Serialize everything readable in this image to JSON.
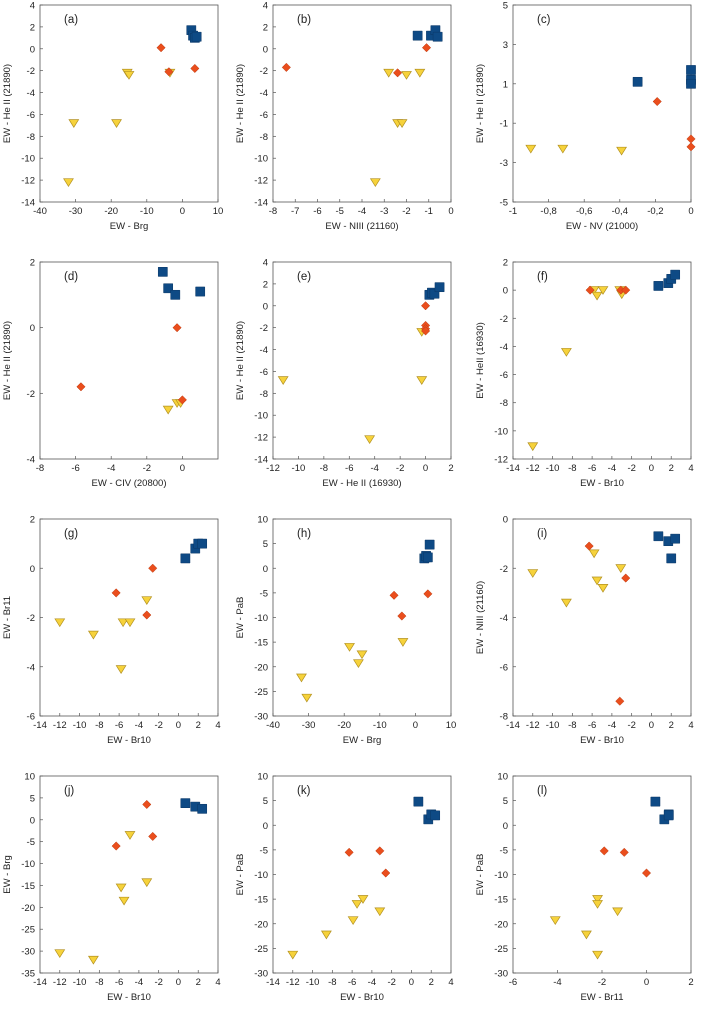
{
  "colors": {
    "blue_squares": "#0e4a85",
    "red_diamonds": "#ea4e1d",
    "yellow_triangles": "#f6d23b"
  },
  "chart_data": [
    {
      "type": "scatter",
      "panel_label": "(a)",
      "xlabel": "EW - Brg",
      "ylabel": "EW - He II (21890)",
      "xlim": [
        -40,
        10
      ],
      "ylim": [
        -14,
        4
      ],
      "xticks": [
        "-40",
        "-30",
        "-20",
        "-10",
        "0",
        "10"
      ],
      "yticks": [
        "-14",
        "-12",
        "-10",
        "-8",
        "-6",
        "-4",
        "-2",
        "0",
        "2",
        "4"
      ],
      "series": [
        {
          "name": "squares",
          "x": [
            2.5,
            3.0,
            3.5,
            4.0
          ],
          "y": [
            1.7,
            1.2,
            1.0,
            1.1
          ]
        },
        {
          "name": "diamonds",
          "x": [
            -6.0,
            -3.8,
            3.5
          ],
          "y": [
            0.1,
            -2.1,
            -1.8
          ]
        },
        {
          "name": "triangles",
          "x": [
            -32.0,
            -30.5,
            -18.5,
            -15.5,
            -15.0,
            -3.5
          ],
          "y": [
            -12.2,
            -6.8,
            -6.8,
            -2.2,
            -2.4,
            -2.2
          ]
        }
      ]
    },
    {
      "type": "scatter",
      "panel_label": "(b)",
      "xlabel": "EW - NIII (21160)",
      "ylabel": "EW - He II (21890)",
      "xlim": [
        -8,
        0
      ],
      "ylim": [
        -14,
        4
      ],
      "xticks": [
        "-8",
        "-7",
        "-6",
        "-5",
        "-4",
        "-3",
        "-2",
        "-1",
        "0"
      ],
      "yticks": [
        "-14",
        "-12",
        "-10",
        "-8",
        "-6",
        "-4",
        "-2",
        "0",
        "2",
        "4"
      ],
      "series": [
        {
          "name": "squares",
          "x": [
            -1.5,
            -0.9,
            -0.7,
            -0.6
          ],
          "y": [
            1.2,
            1.2,
            1.7,
            1.1
          ]
        },
        {
          "name": "diamonds",
          "x": [
            -7.4,
            -2.4,
            -1.1
          ],
          "y": [
            -1.7,
            -2.2,
            0.1
          ]
        },
        {
          "name": "triangles",
          "x": [
            -3.4,
            -2.8,
            -2.4,
            -2.2,
            -2.0,
            -1.4
          ],
          "y": [
            -12.2,
            -2.2,
            -6.8,
            -6.8,
            -2.4,
            -2.2
          ]
        }
      ]
    },
    {
      "type": "scatter",
      "panel_label": "(c)",
      "xlabel": "EW - NV (21000)",
      "ylabel": "EW - He II (21890)",
      "xlim": [
        -1,
        0
      ],
      "ylim": [
        -5,
        5
      ],
      "xticks": [
        "-1",
        "-0,8",
        "-0,6",
        "-0,4",
        "-0,2",
        "0"
      ],
      "yticks": [
        "-5",
        "-3",
        "-1",
        "1",
        "3",
        "5"
      ],
      "series": [
        {
          "name": "squares",
          "x": [
            -0.3,
            0.0,
            0.0,
            0.0
          ],
          "y": [
            1.1,
            1.7,
            1.2,
            1.0
          ]
        },
        {
          "name": "diamonds",
          "x": [
            -0.19,
            0.0,
            0.0
          ],
          "y": [
            0.1,
            -1.8,
            -2.2
          ]
        },
        {
          "name": "triangles",
          "x": [
            -0.9,
            -0.72,
            -0.39
          ],
          "y": [
            -2.3,
            -2.3,
            -2.4
          ]
        }
      ]
    },
    {
      "type": "scatter",
      "panel_label": "(d)",
      "xlabel": "EW - CIV (20800)",
      "ylabel": "EW - He II (21890)",
      "xlim": [
        -8,
        2
      ],
      "ylim": [
        -4,
        2
      ],
      "xticks": [
        "-8",
        "-6",
        "-4",
        "-2",
        "0"
      ],
      "yticks": [
        "-4",
        "-2",
        "0",
        "2"
      ],
      "series": [
        {
          "name": "squares",
          "x": [
            -1.1,
            -0.8,
            -0.4,
            1.0
          ],
          "y": [
            1.7,
            1.2,
            1.0,
            1.1
          ]
        },
        {
          "name": "diamonds",
          "x": [
            -5.7,
            -0.3,
            0.0
          ],
          "y": [
            -1.8,
            0.0,
            -2.2
          ]
        },
        {
          "name": "triangles",
          "x": [
            -0.8,
            -0.3,
            -0.1
          ],
          "y": [
            -2.5,
            -2.3,
            -2.3
          ]
        }
      ]
    },
    {
      "type": "scatter",
      "panel_label": "(e)",
      "xlabel": "EW - He II (16930)",
      "ylabel": "EW - He II (21890)",
      "xlim": [
        -12,
        2
      ],
      "ylim": [
        -14,
        4
      ],
      "xticks": [
        "-12",
        "-10",
        "-8",
        "-6",
        "-4",
        "-2",
        "0",
        "2"
      ],
      "yticks": [
        "-14",
        "-12",
        "-10",
        "-8",
        "-6",
        "-4",
        "-2",
        "0",
        "2",
        "4"
      ],
      "series": [
        {
          "name": "squares",
          "x": [
            0.3,
            0.5,
            0.7,
            1.1
          ],
          "y": [
            1.0,
            1.2,
            1.1,
            1.7
          ]
        },
        {
          "name": "diamonds",
          "x": [
            0.0,
            0.0,
            0.0,
            0.0
          ],
          "y": [
            0.0,
            -1.8,
            -2.1,
            -2.3
          ]
        },
        {
          "name": "triangles",
          "x": [
            -11.2,
            -4.4,
            -0.3,
            -0.3
          ],
          "y": [
            -6.8,
            -12.2,
            -2.4,
            -6.8
          ]
        }
      ]
    },
    {
      "type": "scatter",
      "panel_label": "(f)",
      "xlabel": "EW - Br10",
      "ylabel": "EW - HeII (16930)",
      "xlim": [
        -14,
        4
      ],
      "ylim": [
        -12,
        2
      ],
      "xticks": [
        "-14",
        "-12",
        "-10",
        "-8",
        "-6",
        "-4",
        "-2",
        "0",
        "2",
        "4"
      ],
      "yticks": [
        "-12",
        "-10",
        "-8",
        "-6",
        "-4",
        "-2",
        "0",
        "2"
      ],
      "series": [
        {
          "name": "squares",
          "x": [
            0.7,
            1.7,
            2.0,
            2.4
          ],
          "y": [
            0.3,
            0.5,
            0.8,
            1.1
          ]
        },
        {
          "name": "diamonds",
          "x": [
            -6.2,
            -3.1,
            -2.6
          ],
          "y": [
            0.0,
            0.0,
            0.0
          ]
        },
        {
          "name": "triangles",
          "x": [
            -12.0,
            -8.6,
            -5.8,
            -5.5,
            -4.9,
            -3.2,
            -3.0
          ],
          "y": [
            -11.1,
            -4.4,
            0.0,
            -0.4,
            0.0,
            0.0,
            -0.3
          ]
        }
      ]
    },
    {
      "type": "scatter",
      "panel_label": "(g)",
      "xlabel": "EW - Br10",
      "ylabel": "EW - Br11",
      "xlim": [
        -14,
        4
      ],
      "ylim": [
        -6,
        2
      ],
      "xticks": [
        "-14",
        "-12",
        "-10",
        "-8",
        "-6",
        "-4",
        "-2",
        "0",
        "2",
        "4"
      ],
      "yticks": [
        "-6",
        "-4",
        "-2",
        "0",
        "2"
      ],
      "series": [
        {
          "name": "squares",
          "x": [
            0.7,
            1.7,
            2.0,
            2.4
          ],
          "y": [
            0.4,
            0.8,
            1.0,
            1.0
          ]
        },
        {
          "name": "diamonds",
          "x": [
            -6.3,
            -3.2,
            -2.6
          ],
          "y": [
            -1.0,
            -1.9,
            0.0
          ]
        },
        {
          "name": "triangles",
          "x": [
            -12.0,
            -8.6,
            -5.8,
            -5.6,
            -4.9,
            -3.2
          ],
          "y": [
            -2.2,
            -2.7,
            -4.1,
            -2.2,
            -2.2,
            -1.3
          ]
        }
      ]
    },
    {
      "type": "scatter",
      "panel_label": "(h)",
      "xlabel": "EW - Brg",
      "ylabel": "EW - PaB",
      "xlim": [
        -40,
        10
      ],
      "ylim": [
        -30,
        10
      ],
      "xticks": [
        "-40",
        "-30",
        "-20",
        "-10",
        "0",
        "10"
      ],
      "yticks": [
        "-30",
        "-25",
        "-20",
        "-15",
        "-10",
        "-5",
        "0",
        "5",
        "10"
      ],
      "series": [
        {
          "name": "squares",
          "x": [
            2.5,
            3.0,
            3.5,
            4.0
          ],
          "y": [
            2.0,
            2.5,
            2.2,
            4.8
          ]
        },
        {
          "name": "diamonds",
          "x": [
            -6.0,
            -3.8,
            3.5
          ],
          "y": [
            -5.5,
            -9.7,
            -5.2
          ]
        },
        {
          "name": "triangles",
          "x": [
            -32.0,
            -30.5,
            -18.5,
            -16.0,
            -15.0,
            -3.5
          ],
          "y": [
            -22.2,
            -26.3,
            -16.0,
            -19.3,
            -17.5,
            -15.0
          ]
        }
      ]
    },
    {
      "type": "scatter",
      "panel_label": "(i)",
      "xlabel": "EW - Br10",
      "ylabel": "EW - NIII (21160)",
      "xlim": [
        -14,
        4
      ],
      "ylim": [
        -8,
        0
      ],
      "xticks": [
        "-14",
        "-12",
        "-10",
        "-8",
        "-6",
        "-4",
        "-2",
        "0",
        "2",
        "4"
      ],
      "yticks": [
        "-8",
        "-6",
        "-4",
        "-2",
        "0"
      ],
      "series": [
        {
          "name": "squares",
          "x": [
            0.7,
            1.7,
            2.0,
            2.4
          ],
          "y": [
            -0.7,
            -0.9,
            -1.6,
            -0.8
          ]
        },
        {
          "name": "diamonds",
          "x": [
            -6.3,
            -3.2,
            -2.6
          ],
          "y": [
            -1.1,
            -7.4,
            -2.4
          ]
        },
        {
          "name": "triangles",
          "x": [
            -12.0,
            -8.6,
            -5.8,
            -5.5,
            -4.9,
            -3.1
          ],
          "y": [
            -2.2,
            -3.4,
            -1.4,
            -2.5,
            -2.8,
            -2.0
          ]
        }
      ]
    },
    {
      "type": "scatter",
      "panel_label": "(j)",
      "xlabel": "EW - Br10",
      "ylabel": "EW - Brg",
      "xlim": [
        -14,
        4
      ],
      "ylim": [
        -35,
        10
      ],
      "xticks": [
        "-14",
        "-12",
        "-10",
        "-8",
        "-6",
        "-4",
        "-2",
        "0",
        "2",
        "4"
      ],
      "yticks": [
        "-35",
        "-30",
        "-25",
        "-20",
        "-15",
        "-10",
        "-5",
        "0",
        "5",
        "10"
      ],
      "series": [
        {
          "name": "squares",
          "x": [
            0.7,
            1.7,
            2.4
          ],
          "y": [
            3.8,
            3.0,
            2.5
          ]
        },
        {
          "name": "diamonds",
          "x": [
            -6.3,
            -3.2,
            -2.6
          ],
          "y": [
            -6.0,
            3.5,
            -3.8
          ]
        },
        {
          "name": "triangles",
          "x": [
            -12.0,
            -8.6,
            -5.8,
            -5.5,
            -4.9,
            -3.2
          ],
          "y": [
            -30.5,
            -32.0,
            -15.5,
            -18.5,
            -3.5,
            -14.3
          ]
        }
      ]
    },
    {
      "type": "scatter",
      "panel_label": "(k)",
      "xlabel": "EW - Br10",
      "ylabel": "EW - PaB",
      "xlim": [
        -14,
        4
      ],
      "ylim": [
        -30,
        10
      ],
      "xticks": [
        "-14",
        "-12",
        "-10",
        "-8",
        "-6",
        "-4",
        "-2",
        "0",
        "2",
        "4"
      ],
      "yticks": [
        "-30",
        "-25",
        "-20",
        "-15",
        "-10",
        "-5",
        "0",
        "5",
        "10"
      ],
      "series": [
        {
          "name": "squares",
          "x": [
            0.7,
            1.7,
            2.0,
            2.4
          ],
          "y": [
            4.8,
            1.2,
            2.2,
            2.0
          ]
        },
        {
          "name": "diamonds",
          "x": [
            -6.3,
            -3.2,
            -2.6
          ],
          "y": [
            -5.5,
            -5.2,
            -9.7
          ]
        },
        {
          "name": "triangles",
          "x": [
            -12.0,
            -8.6,
            -5.9,
            -5.5,
            -4.9,
            -3.2
          ],
          "y": [
            -26.3,
            -22.2,
            -19.3,
            -16.0,
            -15.0,
            -17.5
          ]
        }
      ]
    },
    {
      "type": "scatter",
      "panel_label": "(l)",
      "xlabel": "EW - Br11",
      "ylabel": "EW - PaB",
      "xlim": [
        -6,
        2
      ],
      "ylim": [
        -30,
        10
      ],
      "xticks": [
        "-6",
        "-4",
        "-2",
        "0",
        "2"
      ],
      "yticks": [
        "-30",
        "-25",
        "-20",
        "-15",
        "-10",
        "-5",
        "0",
        "5",
        "10"
      ],
      "series": [
        {
          "name": "squares",
          "x": [
            0.4,
            0.8,
            1.0,
            1.0
          ],
          "y": [
            4.8,
            1.2,
            2.2,
            2.0
          ]
        },
        {
          "name": "diamonds",
          "x": [
            -1.9,
            -1.0,
            0.0
          ],
          "y": [
            -5.2,
            -5.5,
            -9.7
          ]
        },
        {
          "name": "triangles",
          "x": [
            -4.1,
            -2.7,
            -2.2,
            -2.2,
            -2.2,
            -1.3
          ],
          "y": [
            -19.3,
            -22.2,
            -26.3,
            -15.0,
            -16.0,
            -17.5
          ]
        }
      ]
    }
  ]
}
